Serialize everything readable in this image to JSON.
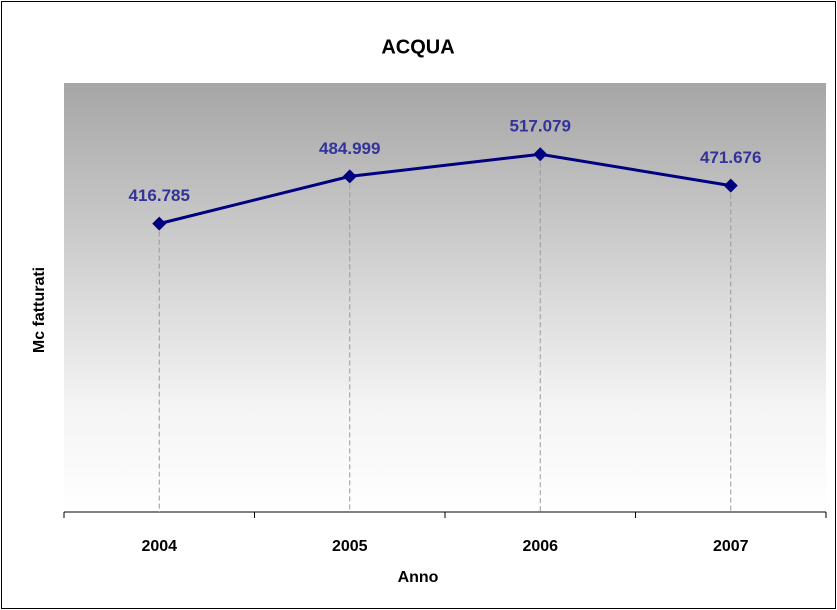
{
  "chart_data": {
    "type": "line",
    "title": "ACQUA",
    "x_label": "Anno",
    "y_label": "Mc fatturati",
    "categories": [
      "2004",
      "2005",
      "2006",
      "2007"
    ],
    "series": [
      {
        "name": "ACQUA",
        "color": "#000080",
        "values": [
          416785,
          484999,
          517079,
          471676
        ],
        "value_labels": [
          "416.785",
          "484.999",
          "517.079",
          "471.676"
        ],
        "label_color": "#333399"
      }
    ],
    "ylim": [
      0,
      620000
    ],
    "drop_lines": true
  }
}
